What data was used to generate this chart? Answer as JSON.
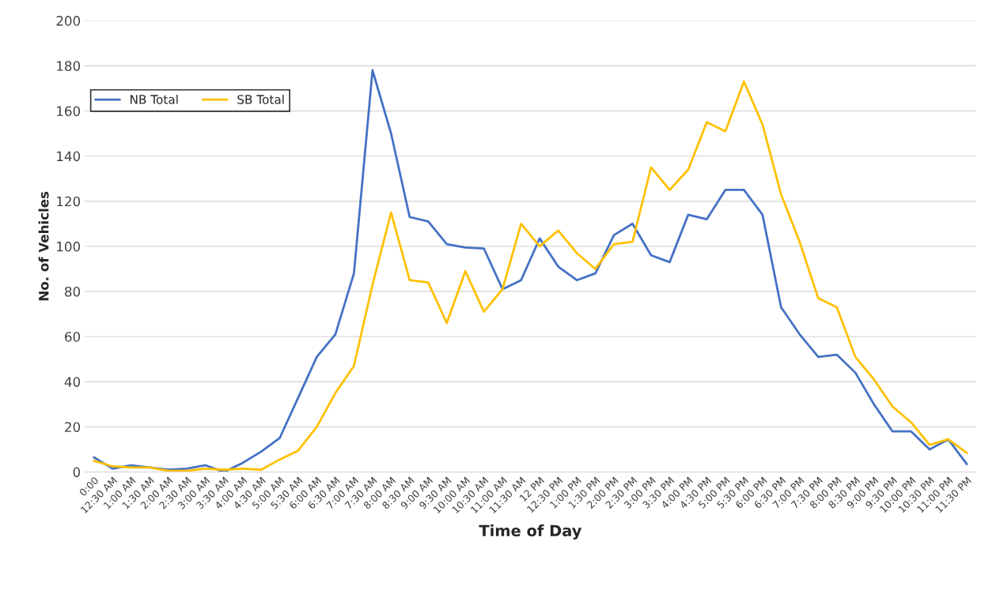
{
  "chart_data": {
    "type": "line",
    "xlabel": "Time of Day",
    "ylabel": "No. of Vehicles",
    "categories": [
      "0:00",
      "12:30 AM",
      "1:00 AM",
      "1:30 AM",
      "2:00 AM",
      "2:30 AM",
      "3:00 AM",
      "3:30 AM",
      "4:00 AM",
      "4:30 AM",
      "5:00 AM",
      "5:30 AM",
      "6:00 AM",
      "6:30 AM",
      "7:00 AM",
      "7:30 AM",
      "8:00 AM",
      "8:30 AM",
      "9:00 AM",
      "9:30 AM",
      "10:00 AM",
      "10:30 AM",
      "11:00 AM",
      "11:30 AM",
      "12 PM",
      "12:30 PM",
      "1:00 PM",
      "1:30 PM",
      "2:00 PM",
      "2:30 PM",
      "3:00 PM",
      "3:30 PM",
      "4:00 PM",
      "4:30 PM",
      "5:00 PM",
      "5:30 PM",
      "6:00 PM",
      "6:30 PM",
      "7:00 PM",
      "7:30 PM",
      "8:00 PM",
      "8:30 PM",
      "9:00 PM",
      "9:30 PM",
      "10:00 PM",
      "10:30 PM",
      "11:00 PM",
      "11:30 PM"
    ],
    "series": [
      {
        "name": "NB Total",
        "color": "#4472c4",
        "values": [
          6.5,
          1.5,
          3,
          2,
          1,
          1.5,
          3,
          0,
          4,
          9,
          15,
          33,
          51,
          61,
          88,
          178,
          150,
          113,
          111,
          101,
          99.5,
          99,
          81,
          85,
          103.5,
          91,
          85,
          88,
          105,
          110,
          96,
          93,
          114,
          112,
          125,
          125,
          114,
          73,
          61,
          51,
          52,
          44,
          30,
          18,
          18,
          10,
          14.5,
          3.5
        ]
      },
      {
        "name": "SB Total",
        "color": "#ffc000",
        "values": [
          5,
          2.5,
          2,
          2,
          0.5,
          0.5,
          1.5,
          1,
          1.5,
          1,
          5.5,
          9.5,
          20,
          35,
          47,
          83,
          115,
          85,
          84,
          66,
          89,
          71,
          81,
          110,
          100,
          107,
          97,
          90,
          101,
          102,
          135,
          125,
          134,
          155,
          151,
          173,
          154,
          123,
          102,
          77,
          73,
          51,
          41,
          29,
          22,
          12,
          14.5,
          8.5
        ]
      }
    ],
    "ylim": [
      0,
      200
    ],
    "yticks": [
      0,
      20,
      40,
      60,
      80,
      100,
      120,
      140,
      160,
      180,
      200
    ],
    "grid": "y",
    "legend": "top left",
    "line_style": "solid",
    "marker": "none"
  }
}
